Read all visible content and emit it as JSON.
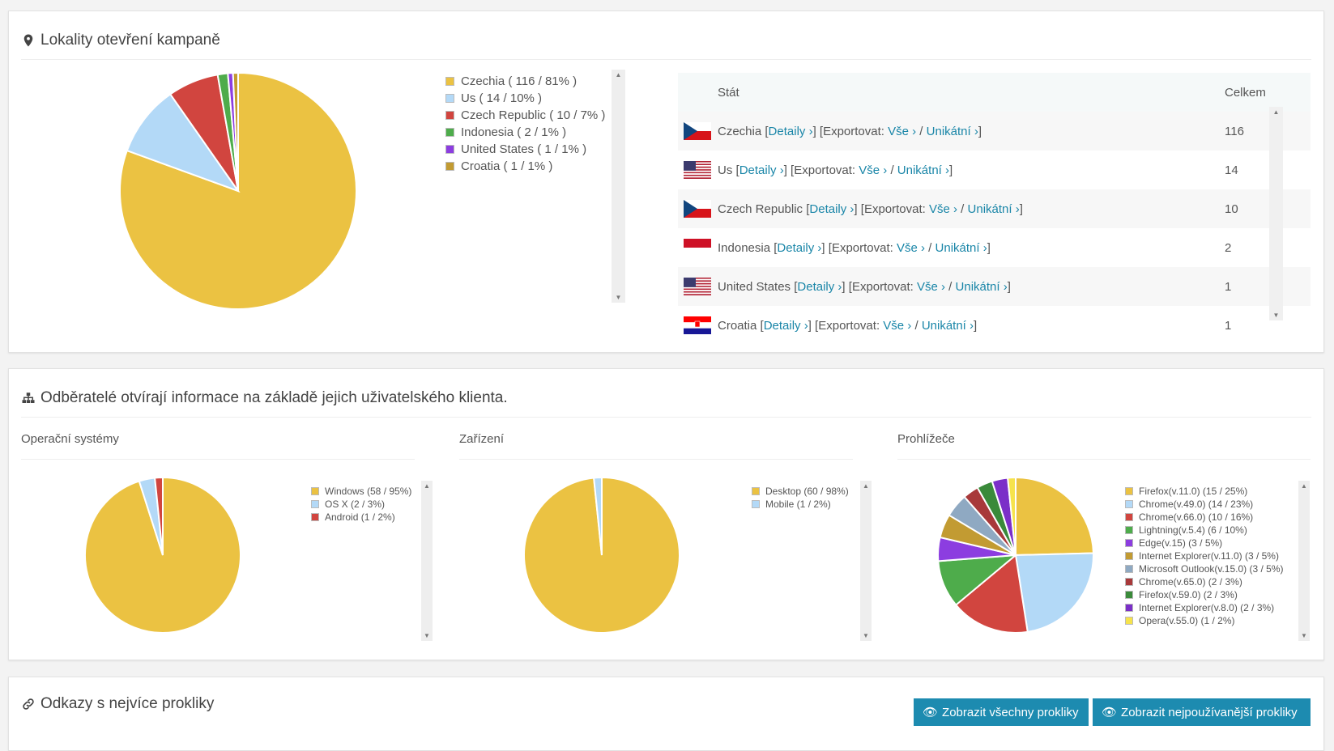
{
  "locations": {
    "title": "Lokality otevření kampaně",
    "legend": [
      {
        "label": "Czechia ( 116 / 81% )",
        "color": "#ebc242",
        "value": 116
      },
      {
        "label": "Us ( 14 / 10% )",
        "color": "#b3d9f7",
        "value": 14
      },
      {
        "label": "Czech Republic ( 10 / 7% )",
        "color": "#d1453f",
        "value": 10
      },
      {
        "label": "Indonesia ( 2 / 1% )",
        "color": "#4eac4b",
        "value": 2
      },
      {
        "label": "United States ( 1 / 1% )",
        "color": "#8c3de0",
        "value": 1
      },
      {
        "label": "Croatia ( 1 / 1% )",
        "color": "#c29b32",
        "value": 1
      }
    ],
    "table": {
      "col_state": "Stát",
      "col_total": "Celkem",
      "detail_label": "Detaily ›",
      "export_label": "Exportovat:",
      "all_label": "Vše ›",
      "unique_label": "Unikátní ›",
      "rows": [
        {
          "name": "Czechia",
          "total": "116",
          "flag": "cz-flag-icon"
        },
        {
          "name": "Us",
          "total": "14",
          "flag": "us-flag-icon"
        },
        {
          "name": "Czech Republic",
          "total": "10",
          "flag": "cz-flag-icon"
        },
        {
          "name": "Indonesia",
          "total": "2",
          "flag": "id-flag-icon"
        },
        {
          "name": "United States",
          "total": "1",
          "flag": "us-flag-icon"
        },
        {
          "name": "Croatia",
          "total": "1",
          "flag": "hr-flag-icon"
        }
      ]
    }
  },
  "clients": {
    "title": "Odběratelé otvírají informace na základě jejich uživatelského klienta.",
    "os": {
      "title": "Operační systémy",
      "legend": [
        {
          "label": "Windows (58 / 95%)",
          "color": "#ebc242",
          "value": 58
        },
        {
          "label": "OS X (2 / 3%)",
          "color": "#b3d9f7",
          "value": 2
        },
        {
          "label": "Android (1 / 2%)",
          "color": "#d1453f",
          "value": 1
        }
      ]
    },
    "devices": {
      "title": "Zařízení",
      "legend": [
        {
          "label": "Desktop (60 / 98%)",
          "color": "#ebc242",
          "value": 60
        },
        {
          "label": "Mobile (1 / 2%)",
          "color": "#b3d9f7",
          "value": 1
        }
      ]
    },
    "browsers": {
      "title": "Prohlížeče",
      "legend": [
        {
          "label": "Firefox(v.11.0) (15 / 25%)",
          "color": "#ebc242",
          "value": 15
        },
        {
          "label": "Chrome(v.49.0) (14 / 23%)",
          "color": "#b3d9f7",
          "value": 14
        },
        {
          "label": "Chrome(v.66.0) (10 / 16%)",
          "color": "#d1453f",
          "value": 10
        },
        {
          "label": "Lightning(v.5.4) (6 / 10%)",
          "color": "#4eac4b",
          "value": 6
        },
        {
          "label": "Edge(v.15) (3 / 5%)",
          "color": "#8c3de0",
          "value": 3
        },
        {
          "label": "Internet Explorer(v.11.0) (3 / 5%)",
          "color": "#c29b32",
          "value": 3
        },
        {
          "label": "Microsoft Outlook(v.15.0) (3 / 5%)",
          "color": "#8fa9c2",
          "value": 3
        },
        {
          "label": "Chrome(v.65.0) (2 / 3%)",
          "color": "#a8393a",
          "value": 2
        },
        {
          "label": "Firefox(v.59.0) (2 / 3%)",
          "color": "#3a8a3a",
          "value": 2
        },
        {
          "label": "Internet Explorer(v.8.0) (2 / 3%)",
          "color": "#7b2fc8",
          "value": 2
        },
        {
          "label": "Opera(v.55.0) (1 / 2%)",
          "color": "#f6e34c",
          "value": 1
        }
      ]
    }
  },
  "links": {
    "title": "Odkazy s nejvíce prokliky",
    "btn_all": "Zobrazit všechny prokliky",
    "btn_most": "Zobrazit nejpoužívanější prokliky"
  }
}
